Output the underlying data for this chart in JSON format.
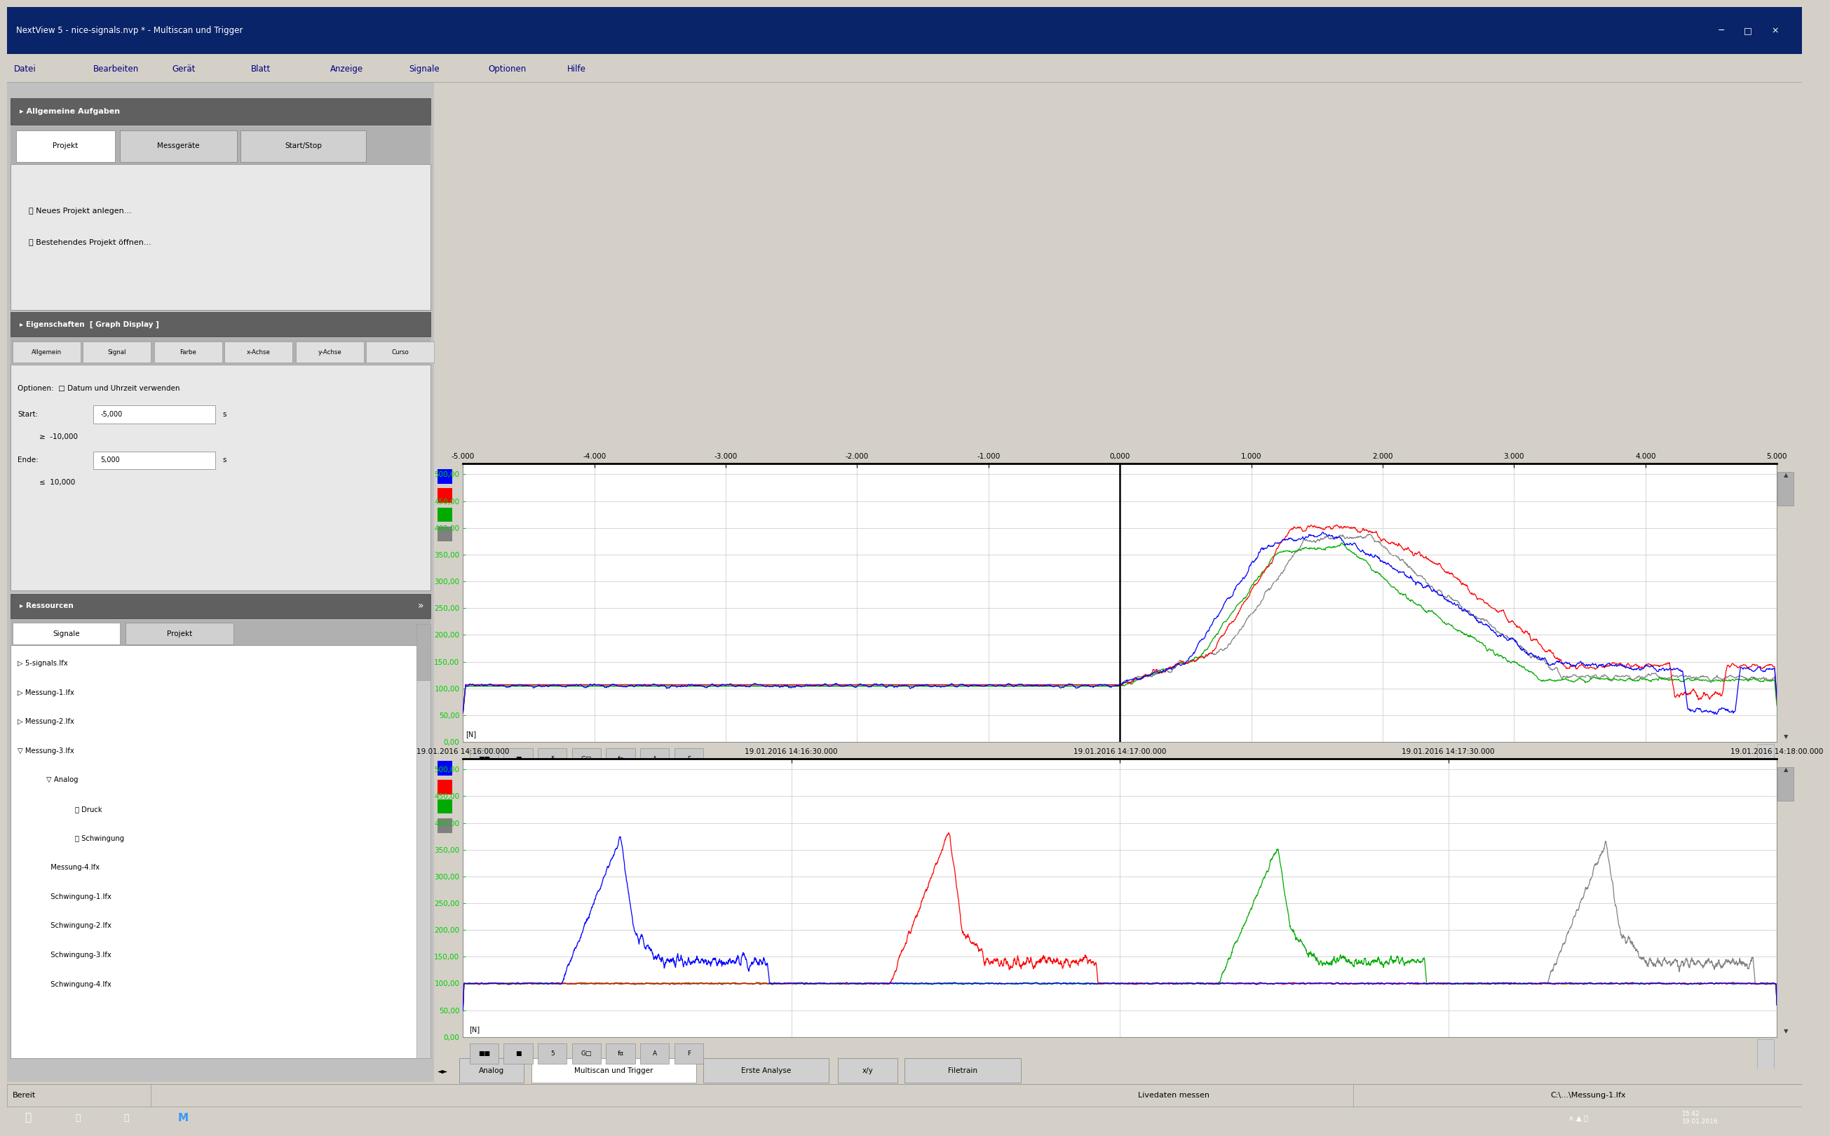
{
  "title": "NextView 5 - nice-signals.nvp * - Multiscan und Trigger",
  "bg_color": "#d4d0c8",
  "panel_bg": "#ffffff",
  "sidebar_bg": "#c8c8c8",
  "chart1_xlim": [
    -5000,
    5000
  ],
  "chart1_ylim": [
    0,
    520
  ],
  "chart1_yticks": [
    0,
    50,
    100,
    150,
    200,
    250,
    300,
    350,
    400,
    450,
    500
  ],
  "chart1_xticks": [
    -5000,
    -4000,
    -3000,
    -2000,
    -1000,
    0,
    1000,
    2000,
    3000,
    4000,
    5000
  ],
  "chart2_xlim": [
    0,
    4
  ],
  "chart2_ylim": [
    0,
    520
  ],
  "chart2_yticks": [
    0,
    50,
    100,
    150,
    200,
    250,
    300,
    350,
    400,
    450,
    500
  ],
  "colors": [
    "#0000ff",
    "#ff0000",
    "#00aa00",
    "#808080"
  ],
  "tick_color": "#00cc00",
  "grid_color": "#d0d0d0",
  "toolbar_bg": "#d4d0c8",
  "title_bar_color": "#0a246a",
  "menu_text_color": "#000080",
  "tab_active": "#ffffff",
  "tab_inactive": "#d0d0d0",
  "section_header_bg": "#808080",
  "chart_xtick_labels1": [
    "-5.000",
    "-4.000",
    "-3.000",
    "-2.000",
    "-1.000",
    "0,000",
    "1.000",
    "2.000",
    "3.000",
    "4.000",
    "5.000"
  ],
  "chart_xtick_labels2": [
    "19.01.2016 14:16:00.000",
    "19.01.2016 14:16:30.000",
    "19.01.2016 14:17:00.000",
    "19.01.2016 14:17:30.000",
    "19.01.2016 14:18:00.000"
  ],
  "chart_ytick_labels": [
    "0,00",
    "50,00",
    "100,00",
    "150,00",
    "200,00",
    "250,00",
    "300,00",
    "350,00",
    "400,00",
    "450,00",
    "500,00"
  ],
  "menus": [
    "Datei",
    "Bearbeiten",
    "Gerät",
    "Blatt",
    "Anzeige",
    "Signale",
    "Optionen",
    "Hilfe"
  ],
  "tabs1": [
    "Projekt",
    "Messgeräte",
    "Start/Stop"
  ],
  "tabs2": [
    "Allgemein",
    "Signal",
    "Farbe",
    "x-Achse",
    "y-Achse",
    "Curso"
  ],
  "tabs3": [
    "Signale",
    "Projekt"
  ],
  "tabs_bottom": [
    "Analog",
    "Multiscan und Trigger",
    "Erste Analyse",
    "x/y",
    "Filetrain"
  ],
  "files": [
    "5-signals.lfx",
    "Messung-1.lfx",
    "Messung-2.lfx",
    "Messung-3.lfx",
    "Analog",
    "Druck",
    "Schwingung",
    "Messung-4.lfx",
    "Schwingung-1.lfx",
    "Schwingung-2.lfx",
    "Schwingung-3.lfx",
    "Schwingung-4.lfx"
  ],
  "file_indent": [
    0,
    0,
    0,
    0,
    1,
    2,
    2,
    1,
    1,
    1,
    1,
    1
  ],
  "file_expand": [
    1,
    1,
    1,
    2,
    2,
    0,
    0,
    0,
    0,
    0,
    0,
    0
  ]
}
